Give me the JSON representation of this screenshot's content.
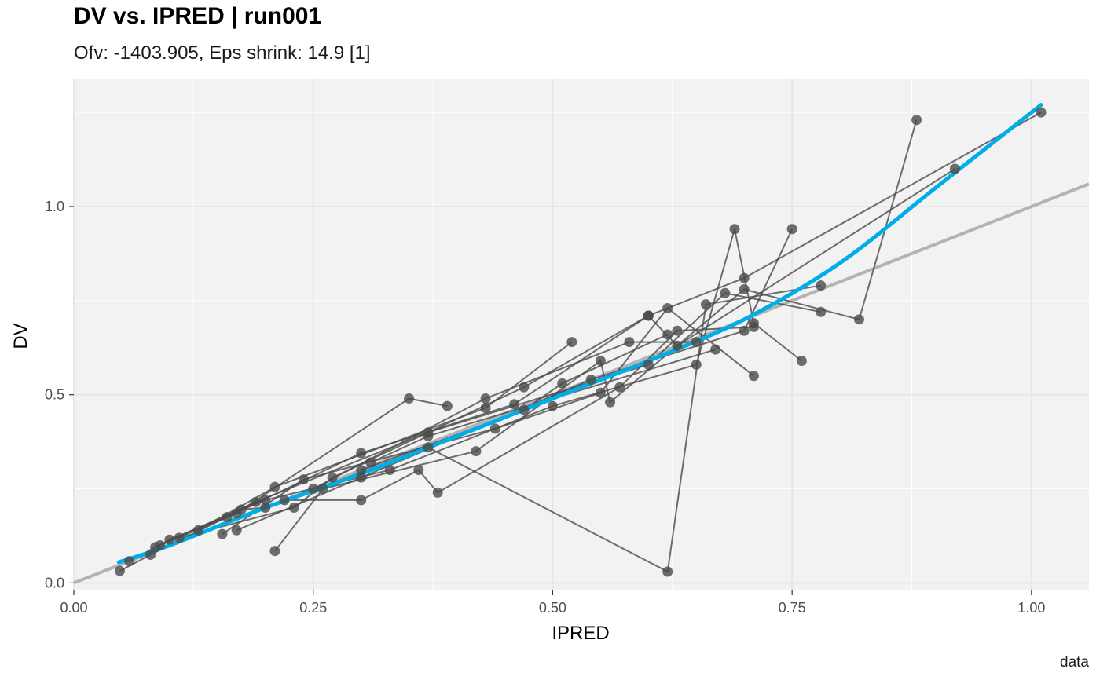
{
  "chart_data": {
    "type": "scatter",
    "title": "DV vs. IPRED | run001",
    "subtitle": "Ofv: -1403.905, Eps shrink: 14.9 [1]",
    "caption": "data",
    "xlabel": "IPRED",
    "ylabel": "DV",
    "xlim": [
      0.0,
      1.06
    ],
    "ylim": [
      -0.02,
      1.34
    ],
    "x_ticks": [
      0.0,
      0.25,
      0.5,
      0.75,
      1.0
    ],
    "x_tick_labels": [
      "0.00",
      "0.25",
      "0.50",
      "0.75",
      "1.00"
    ],
    "y_ticks": [
      0.0,
      0.5,
      1.0
    ],
    "y_tick_labels": [
      "0.0",
      "0.5",
      "1.0"
    ],
    "grid": true,
    "colors": {
      "panel": "#f2f2f2",
      "grid": "#ffffff",
      "points": "#4a4a4a",
      "lines": "#4a4a4a",
      "identity": "#b3b3b3",
      "smooth": "#00aee7"
    },
    "identity_line": [
      [
        0.0,
        0.0
      ],
      [
        1.06,
        1.06
      ]
    ],
    "smooth": [
      [
        0.047,
        0.055
      ],
      [
        0.1,
        0.1
      ],
      [
        0.2,
        0.2
      ],
      [
        0.3,
        0.29
      ],
      [
        0.4,
        0.39
      ],
      [
        0.5,
        0.49
      ],
      [
        0.6,
        0.59
      ],
      [
        0.7,
        0.7
      ],
      [
        0.8,
        0.85
      ],
      [
        0.9,
        1.05
      ],
      [
        1.01,
        1.27
      ]
    ],
    "individuals": [
      {
        "id": 1,
        "points": [
          [
            0.048,
            0.032
          ],
          [
            0.08,
            0.075
          ],
          [
            0.16,
            0.175
          ],
          [
            0.3,
            0.345
          ],
          [
            0.46,
            0.475
          ],
          [
            0.6,
            0.71
          ],
          [
            0.7,
            0.81
          ],
          [
            1.01,
            1.25
          ]
        ]
      },
      {
        "id": 2,
        "points": [
          [
            0.058,
            0.058
          ],
          [
            0.1,
            0.115
          ],
          [
            0.2,
            0.22
          ],
          [
            0.33,
            0.3
          ],
          [
            0.5,
            0.47
          ],
          [
            0.65,
            0.58
          ],
          [
            0.69,
            0.94
          ],
          [
            0.71,
            0.69
          ],
          [
            0.76,
            0.59
          ]
        ]
      },
      {
        "id": 3,
        "points": [
          [
            0.085,
            0.095
          ],
          [
            0.19,
            0.215
          ],
          [
            0.37,
            0.4
          ],
          [
            0.6,
            0.58
          ],
          [
            0.68,
            0.77
          ],
          [
            0.78,
            0.72
          ]
        ]
      },
      {
        "id": 4,
        "points": [
          [
            0.09,
            0.1
          ],
          [
            0.17,
            0.185
          ],
          [
            0.35,
            0.49
          ],
          [
            0.39,
            0.47
          ]
        ]
      },
      {
        "id": 5,
        "points": [
          [
            0.11,
            0.12
          ],
          [
            0.23,
            0.2
          ],
          [
            0.27,
            0.28
          ],
          [
            0.47,
            0.52
          ],
          [
            0.6,
            0.71
          ],
          [
            0.63,
            0.63
          ],
          [
            0.92,
            1.1
          ]
        ]
      },
      {
        "id": 6,
        "points": [
          [
            0.13,
            0.14
          ],
          [
            0.21,
            0.255
          ],
          [
            0.43,
            0.465
          ],
          [
            0.52,
            0.64
          ]
        ]
      },
      {
        "id": 7,
        "points": [
          [
            0.155,
            0.13
          ],
          [
            0.24,
            0.275
          ],
          [
            0.44,
            0.41
          ],
          [
            0.55,
            0.505
          ],
          [
            0.62,
            0.73
          ],
          [
            0.71,
            0.55
          ]
        ]
      },
      {
        "id": 8,
        "points": [
          [
            0.17,
            0.14
          ],
          [
            0.3,
            0.28
          ],
          [
            0.54,
            0.54
          ],
          [
            0.7,
            0.67
          ],
          [
            0.75,
            0.94
          ]
        ]
      },
      {
        "id": 9,
        "points": [
          [
            0.175,
            0.195
          ],
          [
            0.2,
            0.2
          ],
          [
            0.37,
            0.36
          ],
          [
            0.62,
            0.03
          ],
          [
            0.66,
            0.74
          ],
          [
            0.78,
            0.79
          ]
        ]
      },
      {
        "id": 10,
        "points": [
          [
            0.21,
            0.085
          ],
          [
            0.26,
            0.25
          ],
          [
            0.42,
            0.35
          ],
          [
            0.55,
            0.59
          ],
          [
            0.56,
            0.48
          ],
          [
            0.7,
            0.78
          ],
          [
            0.82,
            0.7
          ],
          [
            0.88,
            1.23
          ]
        ]
      },
      {
        "id": 11,
        "points": [
          [
            0.22,
            0.22
          ],
          [
            0.3,
            0.22
          ],
          [
            0.36,
            0.3
          ],
          [
            0.38,
            0.24
          ],
          [
            0.57,
            0.52
          ],
          [
            0.63,
            0.67
          ],
          [
            0.71,
            0.68
          ]
        ]
      },
      {
        "id": 12,
        "points": [
          [
            0.31,
            0.32
          ],
          [
            0.37,
            0.39
          ],
          [
            0.67,
            0.62
          ]
        ]
      },
      {
        "id": 13,
        "points": [
          [
            0.3,
            0.3
          ],
          [
            0.47,
            0.46
          ],
          [
            0.51,
            0.53
          ],
          [
            0.62,
            0.66
          ]
        ]
      },
      {
        "id": 14,
        "points": [
          [
            0.25,
            0.25
          ],
          [
            0.43,
            0.49
          ],
          [
            0.58,
            0.64
          ],
          [
            0.65,
            0.64
          ]
        ]
      }
    ]
  }
}
